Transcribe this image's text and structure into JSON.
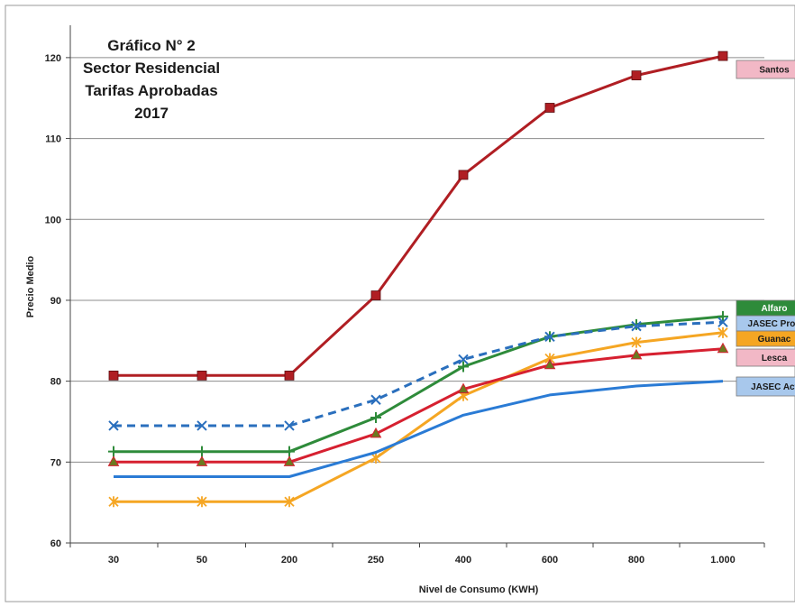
{
  "chart_data": {
    "type": "line",
    "title_lines": [
      "Gráfico N° 2",
      "Sector Residencial",
      "Tarifas Aprobadas",
      "2017"
    ],
    "xlabel": "Nivel de Consumo (KWH)",
    "ylabel": "Precio Medio",
    "categories": [
      "30",
      "50",
      "200",
      "250",
      "400",
      "600",
      "800",
      "1.000"
    ],
    "ylim": [
      60,
      124
    ],
    "yticks": [
      60,
      70,
      80,
      90,
      100,
      110,
      120
    ],
    "grid": true,
    "series": [
      {
        "name": "Santos",
        "color": "#b01e23",
        "label_bg": "#f2b8c6",
        "label_text": "#1a1a1a",
        "marker": "square",
        "dash": false,
        "values": [
          80.7,
          80.7,
          80.7,
          90.6,
          105.5,
          113.8,
          117.8,
          120.2
        ]
      },
      {
        "name": "Alfaro",
        "color": "#2e8b3a",
        "label_bg": "#2e8b3a",
        "label_text": "#ffffff",
        "marker": "plus",
        "dash": false,
        "values": [
          71.3,
          71.3,
          71.3,
          75.5,
          81.8,
          85.5,
          87.0,
          88.0
        ]
      },
      {
        "name": "JASEC Prop",
        "color": "#2a6fbd",
        "label_bg": "#a8c8ec",
        "label_text": "#1a1a1a",
        "marker": "x",
        "dash": true,
        "values": [
          74.5,
          74.5,
          74.5,
          77.7,
          82.7,
          85.5,
          86.8,
          87.3
        ]
      },
      {
        "name": "Guanac",
        "color": "#f5a623",
        "label_bg": "#f5a623",
        "label_text": "#1a1a1a",
        "marker": "star",
        "dash": false,
        "values": [
          65.1,
          65.1,
          65.1,
          70.5,
          78.2,
          82.8,
          84.8,
          86.0
        ]
      },
      {
        "name": "Lesca",
        "color": "#d62030",
        "label_bg": "#f2b8c6",
        "label_text": "#1a1a1a",
        "marker": "triangle",
        "dash": false,
        "values": [
          70.0,
          70.0,
          70.0,
          73.5,
          79.0,
          82.0,
          83.2,
          84.0
        ]
      },
      {
        "name": "JASEC Act",
        "color": "#2a7bd5",
        "label_bg": "#a8c8ec",
        "label_text": "#1a1a1a",
        "marker": "none",
        "dash": false,
        "values": [
          68.2,
          68.2,
          68.2,
          71.2,
          75.8,
          78.3,
          79.4,
          80.0
        ]
      }
    ]
  }
}
